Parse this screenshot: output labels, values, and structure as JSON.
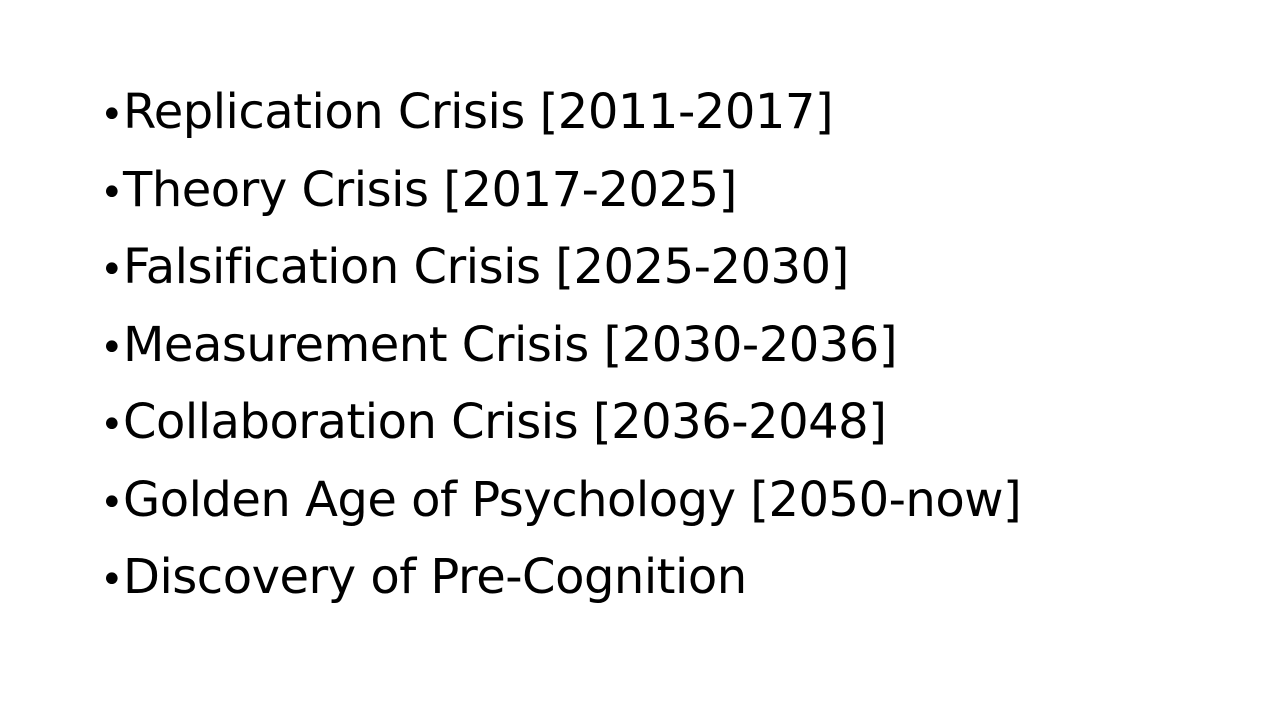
{
  "slide": {
    "bullet_glyph": "•",
    "items": [
      "Replication Crisis [2011-2017]",
      "Theory Crisis [2017-2025]",
      "Falsification Crisis [2025-2030]",
      "Measurement Crisis [2030-2036]",
      "Collaboration Crisis [2036-2048]",
      "Golden Age of Psychology [2050-now]",
      "Discovery of Pre-Cognition"
    ]
  }
}
